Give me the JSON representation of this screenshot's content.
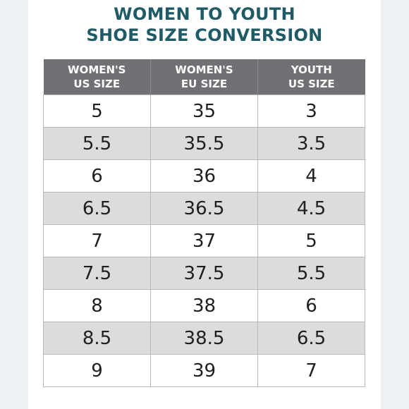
{
  "title": {
    "line1": "WOMEN TO YOUTH",
    "line2": "SHOE SIZE CONVERSION"
  },
  "columns": [
    {
      "line1": "WOMEN'S",
      "line2": "US SIZE"
    },
    {
      "line1": "WOMEN'S",
      "line2": "EU SIZE"
    },
    {
      "line1": "YOUTH",
      "line2": "US SIZE"
    }
  ],
  "rows": [
    [
      "5",
      "35",
      "3"
    ],
    [
      "5.5",
      "35.5",
      "3.5"
    ],
    [
      "6",
      "36",
      "4"
    ],
    [
      "6.5",
      "36.5",
      "4.5"
    ],
    [
      "7",
      "37",
      "5"
    ],
    [
      "7.5",
      "37.5",
      "5.5"
    ],
    [
      "8",
      "38",
      "6"
    ],
    [
      "8.5",
      "38.5",
      "6.5"
    ],
    [
      "9",
      "39",
      "7"
    ]
  ]
}
